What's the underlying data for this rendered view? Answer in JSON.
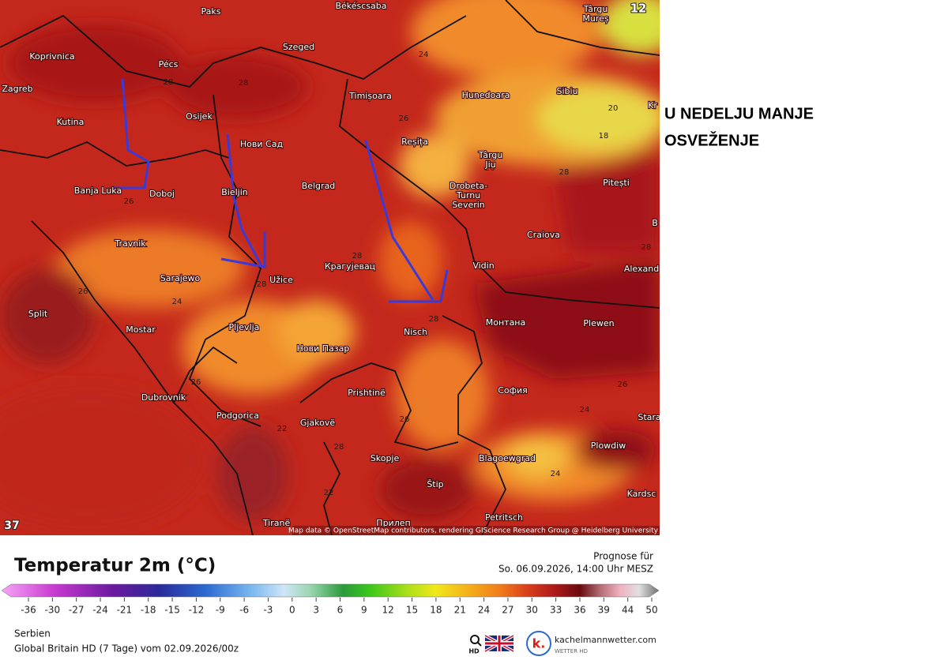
{
  "map": {
    "corner_labels": [
      "12",
      "37"
    ],
    "cities": [
      "Paks",
      "Békéscsaba",
      [
        "Târgu",
        "Mureș"
      ],
      "Koprivnica",
      "Pécs",
      "Szeged",
      "Zagreb",
      "Osijek",
      "Timișoara",
      "Hunedoara",
      "Sibiu",
      "Kr",
      "Kutina",
      "Нови Сад",
      "Reșița",
      [
        "Târgu",
        "Jiu"
      ],
      "Pitești",
      "Banja Luka",
      "Doboj",
      "Bieljin",
      "Belgrad",
      [
        "Drobeta-",
        "Turnu",
        "Severin"
      ],
      "Craiova",
      "B",
      "Travnik",
      "Крагујевац",
      "Vidin",
      "Alexand",
      "Sarajewo",
      "Užice",
      "Split",
      "Mostar",
      "Pljevlja",
      "Nisch",
      "Монтана",
      "Plewen",
      "Нови Пазар",
      "Dubrovnik",
      "Podgorica",
      "Prishtinë",
      "София",
      "Stara",
      "Gjakovë",
      "Skopje",
      "Blagoewgrad",
      "Plowdiw",
      "Štip",
      "Kardsc",
      "Tiranë",
      "Прилеп",
      "Petritsch"
    ],
    "contour_labels": [
      28,
      28,
      24,
      26,
      20,
      18,
      26,
      28,
      26,
      28,
      28,
      26,
      24,
      28,
      28,
      26,
      26,
      24,
      22,
      26,
      28,
      24,
      22
    ],
    "attribution": "Map data © OpenStreetMap contributors, rendering GIScience Research Group @ Heidelberg University"
  },
  "annotation": [
    "U NEDELJU MANJE",
    "OSVEŽENJE"
  ],
  "legend": {
    "title": "Temperatur 2m (°C)",
    "forecast_label": "Prognose für",
    "forecast_time": "So. 06.09.2026, 14:00 Uhr MESZ",
    "ticks": [
      -36,
      -30,
      -27,
      -24,
      -21,
      -18,
      -15,
      -12,
      -9,
      -6,
      -3,
      0,
      3,
      6,
      9,
      12,
      15,
      18,
      21,
      24,
      27,
      30,
      33,
      36,
      39,
      44,
      50
    ]
  },
  "footer": {
    "region": "Serbien",
    "model": "Global Britain HD (7 Tage) vom 02.09.2026/00z",
    "hd": "HD",
    "logo_letter": "k.",
    "brand": "kachelmannwetter.com",
    "brand_sub": "WETTER HD"
  }
}
